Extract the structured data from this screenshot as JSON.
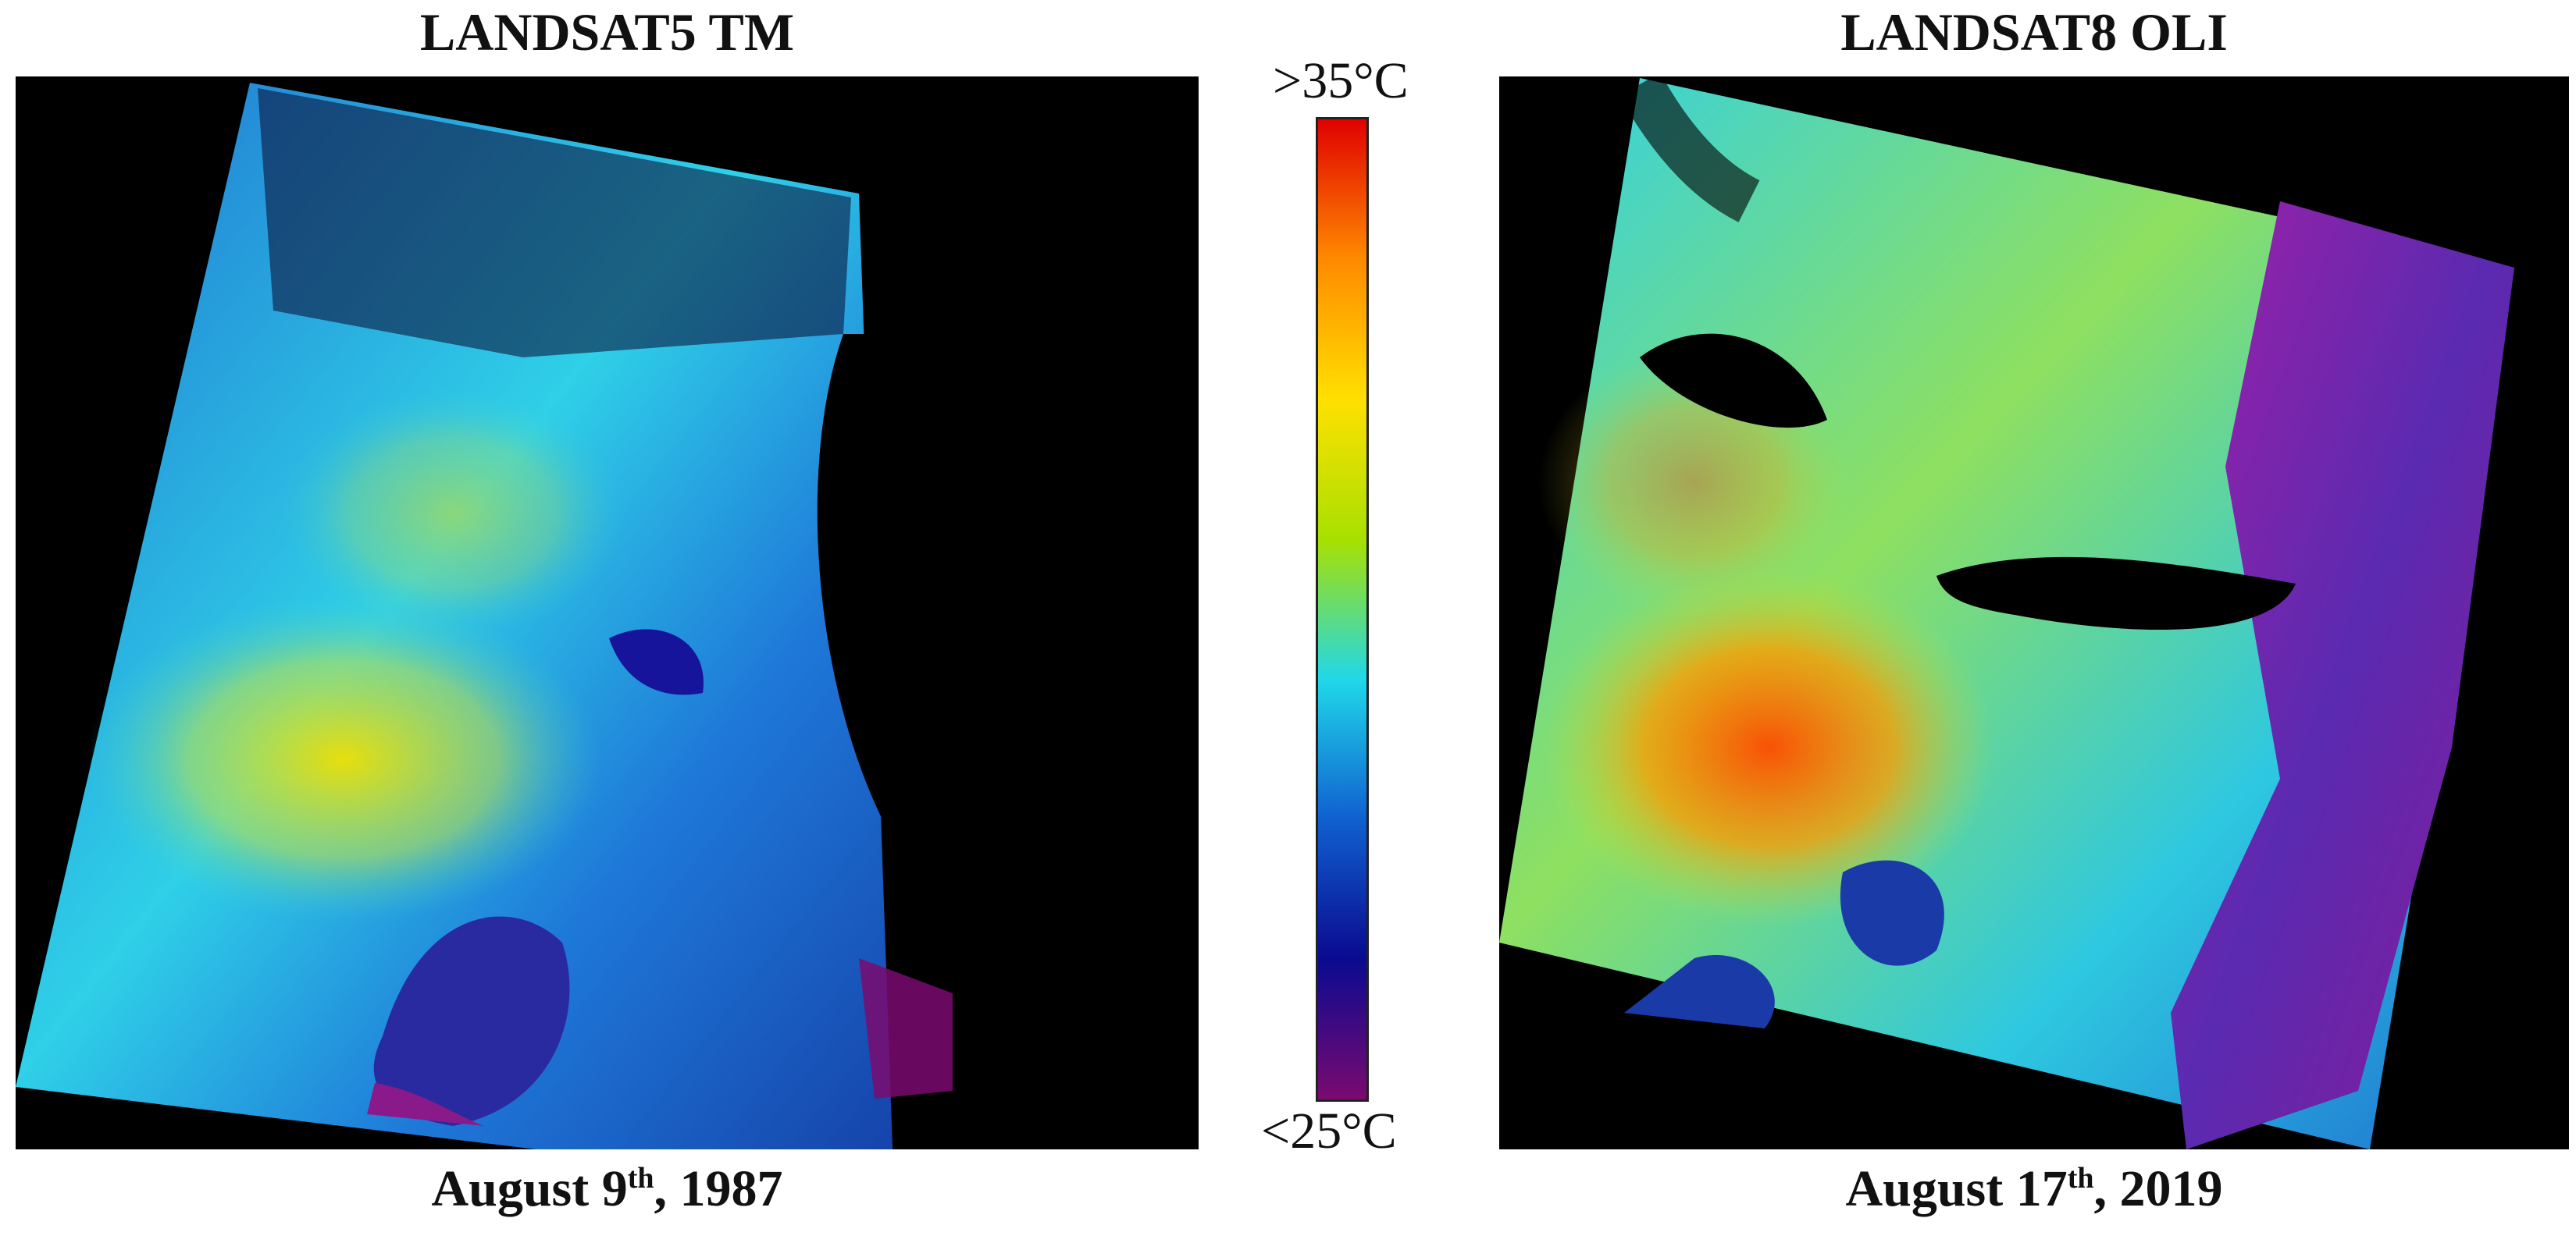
{
  "left_panel": {
    "title": "LANDSAT5 TM",
    "date_prefix": "August 9",
    "date_sup": "th",
    "date_suffix": ", 1987"
  },
  "right_panel": {
    "title": "LANDSAT8 OLI",
    "date_prefix": "August 17",
    "date_sup": "th",
    "date_suffix": ", 2019"
  },
  "colorbar": {
    "max_label": ">35°C",
    "min_label": "<25°C",
    "colors": [
      "#e00000",
      "#ff8a00",
      "#ffe000",
      "#a8e000",
      "#20d8e8",
      "#1060d0",
      "#0a0a90",
      "#7a0a70"
    ]
  }
}
